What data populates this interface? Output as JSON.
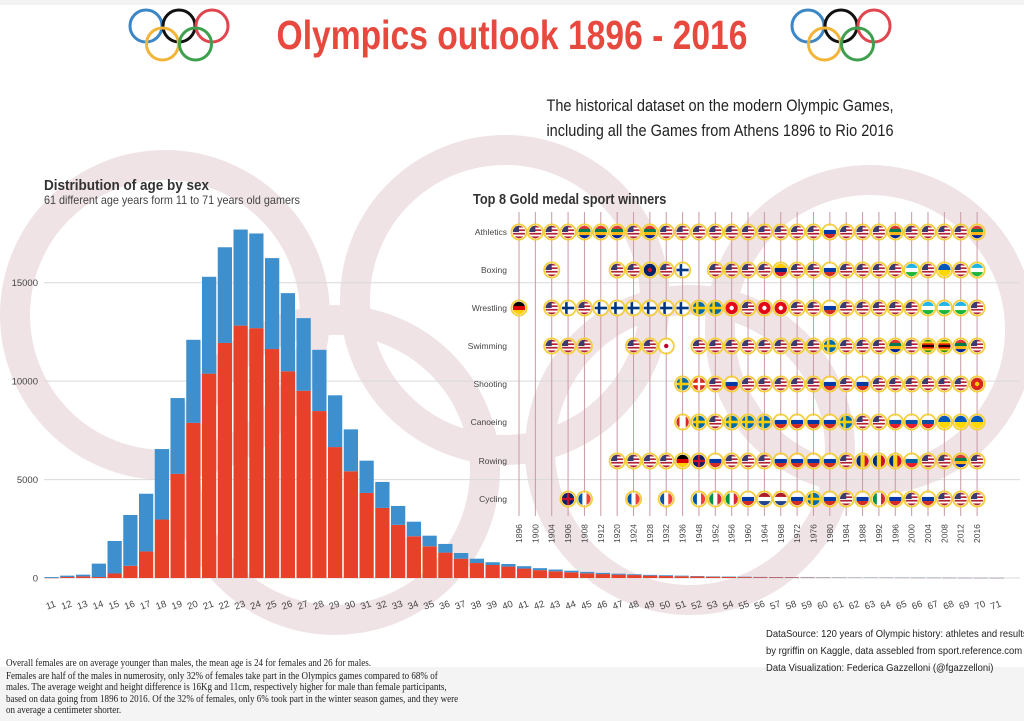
{
  "header": {
    "title": "Olympics outlook 1896 - 2016",
    "subtitle_lines": [
      "The historical dataset on the modern Olympic Games,",
      "including all the Games from Athens 1896 to Rio 2016"
    ],
    "logo_ring_colors": [
      "#3b86c6",
      "#111111",
      "#e04650",
      "#f3b43a",
      "#3ea04f"
    ]
  },
  "chart_data": [
    {
      "type": "bar",
      "stacked": true,
      "title": "Distribution of age by sex",
      "subtitle": "61 different age years form 11 to 71 years old gamers",
      "xlabel": "",
      "ylabel": "",
      "ylim": [
        0,
        18000
      ],
      "yticks": [
        "0",
        "5000",
        "10000",
        "15000"
      ],
      "grid": true,
      "categories": [
        "11",
        "12",
        "13",
        "14",
        "15",
        "16",
        "17",
        "18",
        "19",
        "20",
        "21",
        "22",
        "23",
        "24",
        "25",
        "26",
        "27",
        "28",
        "29",
        "30",
        "31",
        "32",
        "33",
        "34",
        "35",
        "36",
        "37",
        "38",
        "39",
        "40",
        "41",
        "42",
        "43",
        "44",
        "45",
        "46",
        "47",
        "48",
        "49",
        "50",
        "51",
        "52",
        "53",
        "54",
        "55",
        "56",
        "57",
        "58",
        "59",
        "60",
        "61",
        "62",
        "63",
        "64",
        "65",
        "66",
        "67",
        "68",
        "69",
        "70",
        "71"
      ],
      "series": [
        {
          "color": "#e8412a",
          "values": [
            5,
            50,
            80,
            50,
            230,
            620,
            1350,
            2970,
            5290,
            7880,
            10380,
            11940,
            12820,
            12690,
            11630,
            10500,
            9510,
            8480,
            6650,
            5420,
            4320,
            3560,
            2700,
            2120,
            1610,
            1290,
            980,
            760,
            660,
            580,
            480,
            400,
            340,
            290,
            240,
            200,
            170,
            150,
            120,
            100,
            90,
            80,
            65,
            55,
            45,
            40,
            35,
            30,
            25,
            22,
            20,
            18,
            15,
            13,
            12,
            10,
            9,
            8,
            7,
            6,
            5
          ]
        },
        {
          "color": "#3d8fce",
          "values": [
            45,
            70,
            90,
            680,
            1650,
            2580,
            2930,
            3580,
            3850,
            4220,
            4920,
            4860,
            4880,
            4810,
            4620,
            3970,
            3690,
            3110,
            2630,
            2130,
            1640,
            1320,
            960,
            740,
            540,
            440,
            290,
            220,
            140,
            130,
            120,
            100,
            90,
            80,
            70,
            60,
            50,
            40,
            40,
            40,
            30,
            20,
            20,
            20,
            20,
            15,
            12,
            10,
            9,
            8,
            7,
            6,
            6,
            5,
            5,
            4,
            4,
            3,
            3,
            3,
            2
          ]
        }
      ]
    },
    {
      "type": "table",
      "title": "Top 8 Gold medal sport winners",
      "years": [
        "1896",
        "1900",
        "1904",
        "1906",
        "1908",
        "1912",
        "1920",
        "1924",
        "1928",
        "1932",
        "1936",
        "1948",
        "1952",
        "1956",
        "1960",
        "1964",
        "1968",
        "1972",
        "1976",
        "1980",
        "1984",
        "1988",
        "1992",
        "1996",
        "2000",
        "2004",
        "2008",
        "2012",
        "2016"
      ],
      "rows": [
        {
          "sport": "Athletics",
          "winners": [
            "USA",
            "USA",
            "USA",
            "USA",
            "RSA",
            "RSA",
            "RSA",
            "USA",
            "RSA",
            "USA",
            "USA",
            "USA",
            "USA",
            "USA",
            "USA",
            "USA",
            "USA",
            "USA",
            "USA",
            "RUS",
            "USA",
            "USA",
            "USA",
            "RSA",
            "USA",
            "USA",
            "USA",
            "USA",
            "RSA"
          ]
        },
        {
          "sport": "Boxing",
          "winners": [
            "",
            "",
            "USA",
            "",
            "",
            "",
            "USA",
            "USA",
            "NZL",
            "USA",
            "FIN",
            "",
            "USA",
            "USA",
            "USA",
            "USA",
            "VEN",
            "USA",
            "USA",
            "RUS",
            "USA",
            "USA",
            "USA",
            "USA",
            "UZB",
            "USA",
            "UKR",
            "USA",
            "UZB"
          ]
        },
        {
          "sport": "Wrestling",
          "winners": [
            "GER",
            "",
            "USA",
            "FIN",
            "USA",
            "FIN",
            "FIN",
            "FIN",
            "FIN",
            "FIN",
            "FIN",
            "SWE",
            "SWE",
            "TUR",
            "USA",
            "TUR",
            "TUR",
            "USA",
            "USA",
            "RUS",
            "USA",
            "USA",
            "USA",
            "USA",
            "USA",
            "UZB",
            "UZB",
            "UZB",
            "USA"
          ]
        },
        {
          "sport": "Swimming",
          "winners": [
            "",
            "",
            "USA",
            "USA",
            "USA",
            "",
            "",
            "USA",
            "USA",
            "JPN",
            "",
            "USA",
            "USA",
            "USA",
            "USA",
            "USA",
            "USA",
            "USA",
            "USA",
            "SWE",
            "USA",
            "USA",
            "USA",
            "RSA",
            "USA",
            "ZIM",
            "ZIM",
            "RSA",
            "USA"
          ]
        },
        {
          "sport": "Shooting",
          "winners": [
            "",
            "",
            "",
            "",
            "",
            "",
            "",
            "",
            "",
            "",
            "SWE",
            "SUI",
            "USA",
            "RUS",
            "USA",
            "USA",
            "USA",
            "USA",
            "USA",
            "RUS",
            "USA",
            "RUS",
            "USA",
            "USA",
            "USA",
            "USA",
            "USA",
            "USA",
            "VIE"
          ]
        },
        {
          "sport": "Canoeing",
          "winners": [
            "",
            "",
            "",
            "",
            "",
            "",
            "",
            "",
            "",
            "",
            "CAN",
            "SWE",
            "USA",
            "SWE",
            "SWE",
            "SWE",
            "RUS",
            "RUS",
            "RUS",
            "RUS",
            "SWE",
            "USA",
            "USA",
            "SVK",
            "SVK",
            "SVK",
            "UKR",
            "UKR",
            "UKR"
          ]
        },
        {
          "sport": "Rowing",
          "winners": [
            "",
            "",
            "",
            "",
            "",
            "",
            "USA",
            "USA",
            "USA",
            "USA",
            "GER",
            "GBR",
            "RUS",
            "USA",
            "USA",
            "USA",
            "RUS",
            "RUS",
            "RUS",
            "RUS",
            "USA",
            "ROU",
            "ROU",
            "ROU",
            "SLO",
            "USA",
            "USA",
            "RSA",
            "USA"
          ]
        },
        {
          "sport": "Cycling",
          "winners": [
            "",
            "",
            "",
            "GBR",
            "FRA",
            "",
            "",
            "FRA",
            "",
            "FRA",
            "",
            "FRA",
            "ITA",
            "ITA",
            "RUS",
            "NED",
            "NED",
            "RUS",
            "SWE",
            "RUS",
            "USA",
            "RUS",
            "ITA",
            "RUS",
            "USA",
            "RUS",
            "USA",
            "USA",
            "USA"
          ]
        }
      ],
      "medal_ring_color": "#f5cf3a",
      "year_line_color": "#c99aa3"
    }
  ],
  "flag_styles": {
    "USA": {
      "kind": "usa",
      "colors": [
        "#b22234",
        "#ffffff",
        "#3c3b6e"
      ]
    },
    "RSA": {
      "kind": "h",
      "colors": [
        "#de3831",
        "#007a4d",
        "#ffb612",
        "#002395"
      ]
    },
    "RUS": {
      "kind": "h",
      "colors": [
        "#ffffff",
        "#0039a6",
        "#d52b1e"
      ]
    },
    "FIN": {
      "kind": "cross",
      "colors": [
        "#ffffff",
        "#003580"
      ]
    },
    "SWE": {
      "kind": "cross",
      "colors": [
        "#006aa7",
        "#fecc00"
      ]
    },
    "GER": {
      "kind": "h",
      "colors": [
        "#000000",
        "#dd0000",
        "#ffce00"
      ]
    },
    "NZL": {
      "kind": "dot",
      "colors": [
        "#012169",
        "#cc142b"
      ]
    },
    "VEN": {
      "kind": "h",
      "colors": [
        "#ffcc00",
        "#00247d",
        "#cf142b"
      ]
    },
    "UZB": {
      "kind": "h",
      "colors": [
        "#1eb5e6",
        "#ffffff",
        "#1eb53a"
      ]
    },
    "UKR": {
      "kind": "h",
      "colors": [
        "#0057b7",
        "#ffd700"
      ]
    },
    "TUR": {
      "kind": "dot",
      "colors": [
        "#e30a17",
        "#ffffff"
      ]
    },
    "JPN": {
      "kind": "dot",
      "colors": [
        "#ffffff",
        "#bc002d"
      ]
    },
    "ZIM": {
      "kind": "h",
      "colors": [
        "#319208",
        "#ffd200",
        "#de2010",
        "#000000",
        "#de2010",
        "#ffd200",
        "#319208"
      ]
    },
    "SUI": {
      "kind": "plus",
      "colors": [
        "#da291c",
        "#ffffff"
      ]
    },
    "VIE": {
      "kind": "dot",
      "colors": [
        "#da251d",
        "#ffcd00"
      ]
    },
    "CAN": {
      "kind": "v",
      "colors": [
        "#d52b1e",
        "#ffffff",
        "#ffffff",
        "#d52b1e"
      ]
    },
    "SVK": {
      "kind": "h",
      "colors": [
        "#ffffff",
        "#0b4ea2",
        "#ee1c25"
      ]
    },
    "GBR": {
      "kind": "plus",
      "colors": [
        "#012169",
        "#c8102e"
      ]
    },
    "ROU": {
      "kind": "v",
      "colors": [
        "#002b7f",
        "#fcd116",
        "#ce1126"
      ]
    },
    "SLO": {
      "kind": "h",
      "colors": [
        "#ffffff",
        "#005da4",
        "#ed1c24"
      ]
    },
    "FRA": {
      "kind": "v",
      "colors": [
        "#0055a4",
        "#ffffff",
        "#ef4135"
      ]
    },
    "ITA": {
      "kind": "v",
      "colors": [
        "#009246",
        "#ffffff",
        "#ce2b37"
      ]
    },
    "NED": {
      "kind": "h",
      "colors": [
        "#ae1c28",
        "#ffffff",
        "#21468b"
      ]
    }
  },
  "footer": {
    "source_lines": [
      "DataSource: 120 years of Olympic history: athletes and results",
      "by rgriffin on Kaggle, data assebled from sport.reference.com",
      "Data Visualization: Federica Gazzelloni (@fgazzelloni)"
    ],
    "note_lines": [
      "Overall females are on average younger than males, the mean age is 24 for females and 26 for males.",
      "Females are half of the males in numerosity, only 32% of females take part in the Olympics games compared to 68% of",
      "males. The average weight and height difference is 16Kg and 11cm, respectively higher for male than female participants,",
      "based on data going from 1896 to 2016. Of the 32% of females, only 6% took part in the winter season games, and they were",
      "on average a centimeter shorter."
    ]
  },
  "background_ring_color": "#efe3e6"
}
